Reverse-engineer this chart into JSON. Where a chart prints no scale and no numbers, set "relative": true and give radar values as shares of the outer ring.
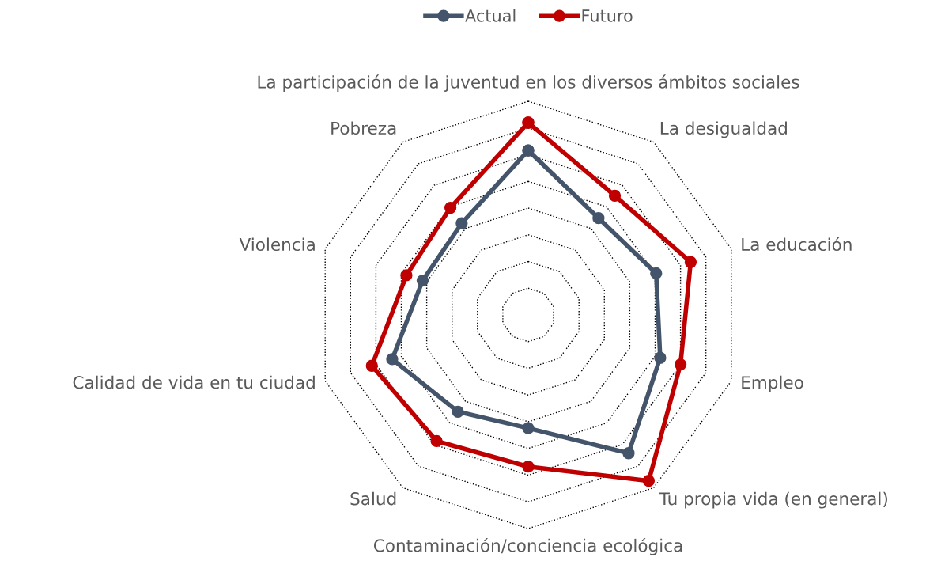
{
  "chart_data": {
    "type": "radar",
    "relative": true,
    "grid": true,
    "legend": "top",
    "marker": "circle",
    "line_style": "solid",
    "categories": [
      "La participación de la juventud en los diversos ámbitos sociales",
      "La desigualdad",
      "La educación",
      "Empleo",
      "Tu propia vida (en general)",
      "Contaminación/conciencia ecológica",
      "Salud",
      "Calidad de vida en tu ciudad",
      "Violencia",
      "Pobreza"
    ],
    "series": [
      {
        "name": "Actual",
        "color": "#44546a",
        "values": [
          0.77,
          0.56,
          0.63,
          0.65,
          0.8,
          0.53,
          0.56,
          0.67,
          0.52,
          0.53
        ]
      },
      {
        "name": "Futuro",
        "color": "#c00000",
        "values": [
          0.9,
          0.69,
          0.8,
          0.75,
          0.96,
          0.71,
          0.73,
          0.77,
          0.6,
          0.62
        ]
      }
    ]
  }
}
